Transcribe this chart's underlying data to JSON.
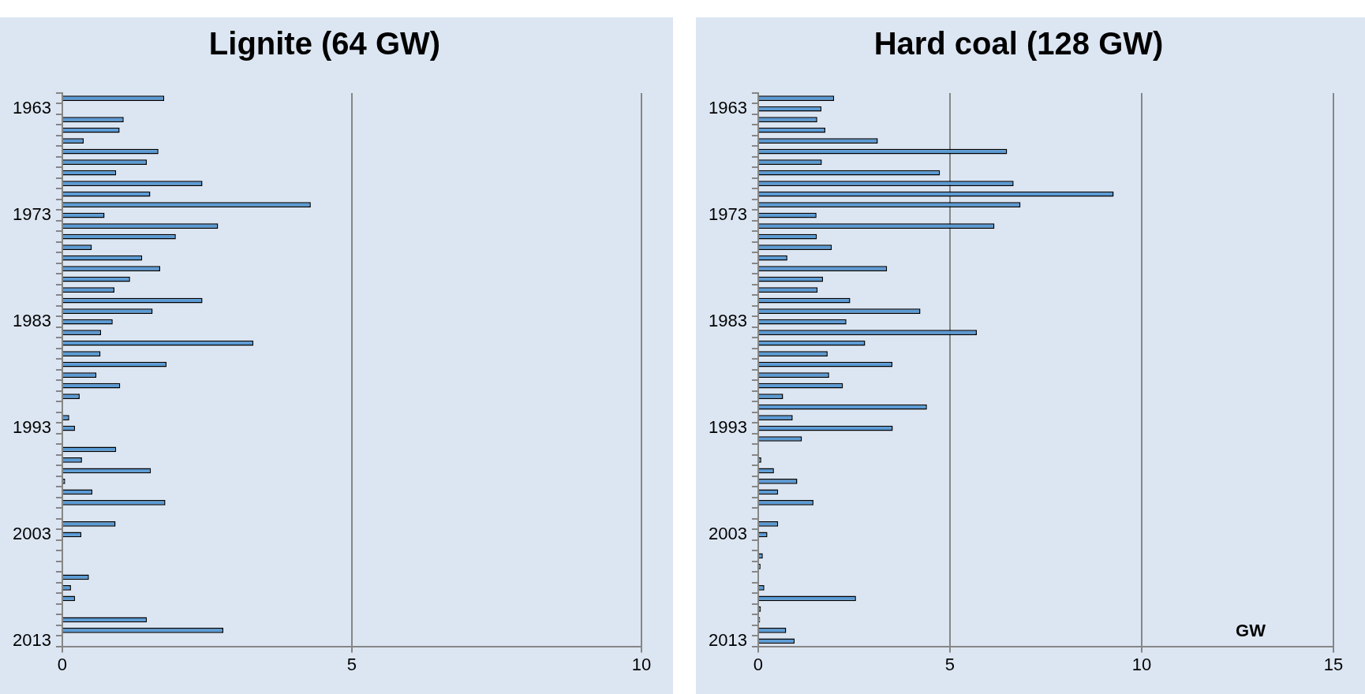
{
  "chart_data": [
    {
      "type": "bar",
      "orientation": "horizontal",
      "title": "Lignite (64 GW)",
      "grid": "x",
      "color": "#5b9bd5",
      "categories": [
        null,
        "1963",
        null,
        null,
        null,
        null,
        null,
        null,
        null,
        null,
        null,
        "1973",
        null,
        null,
        null,
        null,
        null,
        null,
        null,
        null,
        null,
        "1983",
        null,
        null,
        null,
        null,
        null,
        null,
        null,
        null,
        null,
        "1993",
        null,
        null,
        null,
        null,
        null,
        null,
        null,
        null,
        null,
        "2003",
        null,
        null,
        null,
        null,
        null,
        null,
        null,
        null,
        null,
        "2013"
      ],
      "values": [
        1.76,
        0,
        1.06,
        0.99,
        0.37,
        1.66,
        1.46,
        0.93,
        2.42,
        1.52,
        4.29,
        0.73,
        2.69,
        1.96,
        0.51,
        1.38,
        1.69,
        1.17,
        0.9,
        2.42,
        1.56,
        0.87,
        0.67,
        3.3,
        0.66,
        1.8,
        0.59,
        1.0,
        0.3,
        0,
        0.12,
        0.22,
        0,
        0.93,
        0.34,
        1.53,
        0.05,
        0.52,
        1.78,
        0,
        0.92,
        0.33,
        0,
        0,
        0,
        0.46,
        0.15,
        0.22,
        0,
        1.46,
        2.78,
        0
      ],
      "xlim": [
        0,
        10
      ],
      "xticks": [
        0,
        5,
        10
      ]
    },
    {
      "type": "bar",
      "orientation": "horizontal",
      "title": "Hard coal (128 GW)",
      "xlabel": "GW",
      "grid": "x",
      "color": "#5b9bd5",
      "categories": [
        null,
        "1963",
        null,
        null,
        null,
        null,
        null,
        null,
        null,
        null,
        null,
        "1973",
        null,
        null,
        null,
        null,
        null,
        null,
        null,
        null,
        null,
        "1983",
        null,
        null,
        null,
        null,
        null,
        null,
        null,
        null,
        null,
        "1993",
        null,
        null,
        null,
        null,
        null,
        null,
        null,
        null,
        null,
        "2003",
        null,
        null,
        null,
        null,
        null,
        null,
        null,
        null,
        null,
        "2013"
      ],
      "values": [
        1.98,
        1.65,
        1.54,
        1.75,
        3.12,
        6.49,
        1.66,
        4.74,
        6.66,
        9.27,
        6.84,
        1.52,
        6.16,
        1.53,
        1.92,
        0.76,
        3.36,
        1.69,
        1.55,
        2.4,
        4.23,
        2.3,
        5.7,
        2.79,
        1.81,
        3.5,
        1.85,
        2.21,
        0.65,
        4.4,
        0.9,
        3.51,
        1.14,
        0,
        0.08,
        0.41,
        1.02,
        0.52,
        1.44,
        0,
        0.52,
        0.24,
        0,
        0.12,
        0.06,
        0,
        0.16,
        2.55,
        0.07,
        0.05,
        0.73,
        0.95
      ],
      "xlim": [
        0,
        15
      ],
      "xticks": [
        0,
        5,
        10,
        15
      ]
    }
  ]
}
